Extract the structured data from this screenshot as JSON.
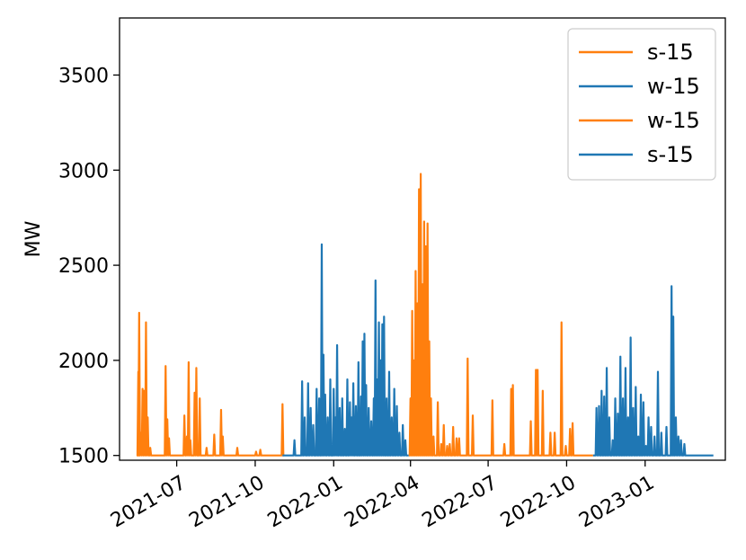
{
  "chart_data": {
    "type": "line",
    "title": "",
    "xlabel": "",
    "ylabel": "MW",
    "ylim": [
      1475,
      3800
    ],
    "xlim": [
      "2021-04-25",
      "2023-04-05"
    ],
    "y_ticks": [
      1500,
      2000,
      2500,
      3000,
      3500
    ],
    "x_ticks": [
      "2021-07",
      "2021-10",
      "2022-01",
      "2022-04",
      "2022-07",
      "2022-10",
      "2023-01"
    ],
    "grid": false,
    "legend": {
      "placement": "top-right",
      "entries": [
        {
          "name": "s-15",
          "color": "#ff7f0e"
        },
        {
          "name": "w-15",
          "color": "#1f77b4"
        },
        {
          "name": "w-15",
          "color": "#ff7f0e"
        },
        {
          "name": "s-15",
          "color": "#1f77b4"
        }
      ]
    },
    "series": [
      {
        "name": "s-15",
        "color": "#ff7f0e",
        "baseline": 1500,
        "start": "2021-05-17",
        "end": "2021-11-02",
        "spikes": [
          [
            "2021-05-17",
            1940
          ],
          [
            "2021-05-18",
            2250
          ],
          [
            "2021-05-20",
            1620
          ],
          [
            "2021-05-22",
            1850
          ],
          [
            "2021-05-24",
            1840
          ],
          [
            "2021-05-26",
            2200
          ],
          [
            "2021-05-28",
            1700
          ],
          [
            "2021-05-31",
            1540
          ],
          [
            "2021-06-18",
            1970
          ],
          [
            "2021-06-20",
            1690
          ],
          [
            "2021-06-22",
            1590
          ],
          [
            "2021-07-10",
            1710
          ],
          [
            "2021-07-13",
            1600
          ],
          [
            "2021-07-15",
            1990
          ],
          [
            "2021-07-17",
            1580
          ],
          [
            "2021-07-22",
            1830
          ],
          [
            "2021-07-24",
            1960
          ],
          [
            "2021-07-28",
            1800
          ],
          [
            "2021-08-05",
            1540
          ],
          [
            "2021-08-14",
            1610
          ],
          [
            "2021-08-22",
            1740
          ],
          [
            "2021-08-24",
            1600
          ],
          [
            "2021-09-10",
            1540
          ],
          [
            "2021-10-02",
            1520
          ],
          [
            "2021-10-07",
            1530
          ],
          [
            "2021-11-02",
            1770
          ]
        ]
      },
      {
        "name": "w-15",
        "color": "#1f77b4",
        "baseline": 1500,
        "start": "2021-11-02",
        "end": "2022-03-30",
        "spikes": [
          [
            "2021-11-16",
            1580
          ],
          [
            "2021-11-25",
            1890
          ],
          [
            "2021-11-28",
            1700
          ],
          [
            "2021-12-02",
            1880
          ],
          [
            "2021-12-05",
            1750
          ],
          [
            "2021-12-08",
            1660
          ],
          [
            "2021-12-12",
            1850
          ],
          [
            "2021-12-15",
            1800
          ],
          [
            "2021-12-18",
            2610
          ],
          [
            "2021-12-20",
            2030
          ],
          [
            "2021-12-22",
            1820
          ],
          [
            "2021-12-25",
            1700
          ],
          [
            "2021-12-28",
            1900
          ],
          [
            "2022-01-01",
            1850
          ],
          [
            "2022-01-03",
            1700
          ],
          [
            "2022-01-05",
            2080
          ],
          [
            "2022-01-08",
            1750
          ],
          [
            "2022-01-11",
            1800
          ],
          [
            "2022-01-14",
            1640
          ],
          [
            "2022-01-17",
            1900
          ],
          [
            "2022-01-20",
            1780
          ],
          [
            "2022-01-22",
            1700
          ],
          [
            "2022-01-24",
            1880
          ],
          [
            "2022-01-27",
            1760
          ],
          [
            "2022-01-30",
            1990
          ],
          [
            "2022-02-02",
            1810
          ],
          [
            "2022-02-04",
            2100
          ],
          [
            "2022-02-06",
            2140
          ],
          [
            "2022-02-08",
            1870
          ],
          [
            "2022-02-11",
            1750
          ],
          [
            "2022-02-14",
            1680
          ],
          [
            "2022-02-17",
            1800
          ],
          [
            "2022-02-19",
            2420
          ],
          [
            "2022-02-21",
            1900
          ],
          [
            "2022-02-23",
            2200
          ],
          [
            "2022-02-25",
            2000
          ],
          [
            "2022-02-27",
            2190
          ],
          [
            "2022-03-01",
            2230
          ],
          [
            "2022-03-04",
            1800
          ],
          [
            "2022-03-07",
            1940
          ],
          [
            "2022-03-10",
            1700
          ],
          [
            "2022-03-13",
            1850
          ],
          [
            "2022-03-16",
            1760
          ],
          [
            "2022-03-19",
            1620
          ],
          [
            "2022-03-23",
            1660
          ],
          [
            "2022-03-26",
            1580
          ]
        ]
      },
      {
        "name": "w-15",
        "color": "#ff7f0e",
        "baseline": 1500,
        "start": "2022-03-30",
        "end": "2022-11-01",
        "spikes": [
          [
            "2022-04-01",
            1800
          ],
          [
            "2022-04-03",
            2260
          ],
          [
            "2022-04-05",
            2000
          ],
          [
            "2022-04-07",
            2470
          ],
          [
            "2022-04-09",
            2300
          ],
          [
            "2022-04-11",
            2900
          ],
          [
            "2022-04-13",
            2980
          ],
          [
            "2022-04-15",
            2400
          ],
          [
            "2022-04-17",
            2730
          ],
          [
            "2022-04-19",
            2600
          ],
          [
            "2022-04-21",
            2720
          ],
          [
            "2022-04-23",
            2100
          ],
          [
            "2022-04-25",
            1800
          ],
          [
            "2022-04-28",
            1600
          ],
          [
            "2022-05-03",
            1780
          ],
          [
            "2022-05-07",
            1560
          ],
          [
            "2022-05-10",
            1660
          ],
          [
            "2022-05-14",
            1550
          ],
          [
            "2022-05-17",
            1560
          ],
          [
            "2022-05-21",
            1650
          ],
          [
            "2022-05-25",
            1590
          ],
          [
            "2022-05-28",
            1590
          ],
          [
            "2022-06-07",
            2010
          ],
          [
            "2022-06-13",
            1710
          ],
          [
            "2022-07-06",
            1790
          ],
          [
            "2022-07-20",
            1560
          ],
          [
            "2022-07-28",
            1850
          ],
          [
            "2022-07-30",
            1870
          ],
          [
            "2022-08-20",
            1680
          ],
          [
            "2022-08-26",
            1950
          ],
          [
            "2022-08-28",
            1950
          ],
          [
            "2022-09-03",
            1840
          ],
          [
            "2022-09-12",
            1620
          ],
          [
            "2022-09-17",
            1620
          ],
          [
            "2022-09-25",
            2200
          ],
          [
            "2022-09-30",
            1550
          ],
          [
            "2022-10-05",
            1640
          ],
          [
            "2022-10-08",
            1670
          ]
        ]
      },
      {
        "name": "s-15",
        "color": "#1f77b4",
        "baseline": 1500,
        "start": "2022-11-01",
        "end": "2023-03-22",
        "spikes": [
          [
            "2022-11-05",
            1750
          ],
          [
            "2022-11-08",
            1760
          ],
          [
            "2022-11-11",
            1840
          ],
          [
            "2022-11-14",
            1810
          ],
          [
            "2022-11-17",
            1960
          ],
          [
            "2022-11-20",
            1700
          ],
          [
            "2022-11-24",
            1580
          ],
          [
            "2022-11-27",
            1800
          ],
          [
            "2022-11-30",
            1720
          ],
          [
            "2022-12-03",
            2020
          ],
          [
            "2022-12-06",
            1800
          ],
          [
            "2022-12-09",
            1960
          ],
          [
            "2022-12-12",
            1700
          ],
          [
            "2022-12-15",
            2120
          ],
          [
            "2022-12-18",
            1750
          ],
          [
            "2022-12-21",
            1860
          ],
          [
            "2022-12-24",
            1600
          ],
          [
            "2022-12-27",
            1820
          ],
          [
            "2022-12-30",
            1780
          ],
          [
            "2023-01-02",
            1550
          ],
          [
            "2023-01-05",
            1700
          ],
          [
            "2023-01-08",
            1650
          ],
          [
            "2023-01-12",
            1600
          ],
          [
            "2023-01-16",
            1940
          ],
          [
            "2023-01-20",
            1620
          ],
          [
            "2023-01-26",
            1650
          ],
          [
            "2023-02-01",
            2390
          ],
          [
            "2023-02-03",
            2230
          ],
          [
            "2023-02-06",
            1700
          ],
          [
            "2023-02-09",
            1600
          ],
          [
            "2023-02-12",
            1580
          ],
          [
            "2023-02-16",
            1560
          ]
        ]
      }
    ]
  }
}
